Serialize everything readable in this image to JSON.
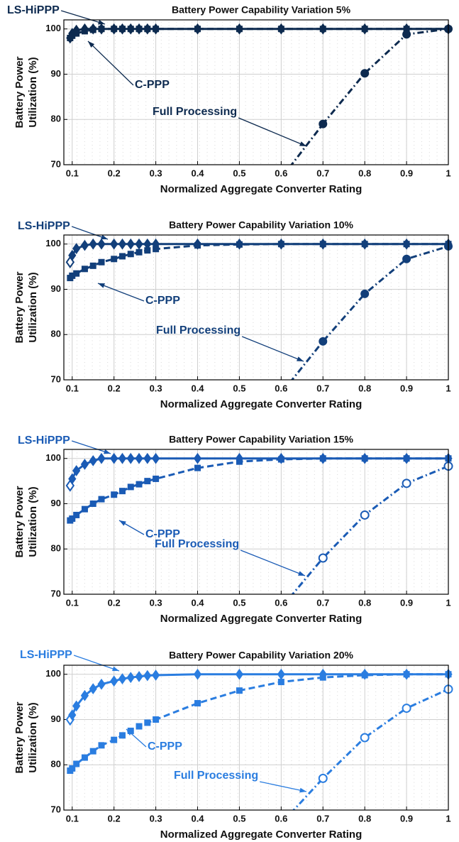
{
  "chart_data": [
    {
      "type": "line",
      "title": "Battery Power Capability Variation 5%",
      "xlabel": "Normalized Aggregate Converter Rating",
      "ylabel": [
        "Battery Power",
        "Utilization (%)"
      ],
      "color": "#0d2a4f",
      "xlim": [
        0.08,
        1
      ],
      "ylim": [
        70,
        102
      ],
      "xticks": [
        0.1,
        0.2,
        0.3,
        0.4,
        0.5,
        0.6,
        0.7,
        0.8,
        0.9,
        1
      ],
      "yticks": [
        70,
        80,
        90,
        100
      ],
      "grid": true,
      "series": [
        {
          "name": "LS-HiPPP",
          "dash": "solid",
          "marker": "diamond",
          "open_points": [],
          "x": [
            0.095,
            0.1,
            0.11,
            0.13,
            0.15,
            0.17,
            0.2,
            0.22,
            0.24,
            0.26,
            0.28,
            0.3,
            0.4,
            0.5,
            0.6,
            0.7,
            0.8,
            0.9,
            1
          ],
          "values": [
            98,
            99,
            99.7,
            100,
            100,
            100,
            100,
            100,
            100,
            100,
            100,
            100,
            100,
            100,
            100,
            100,
            100,
            100,
            100
          ]
        },
        {
          "name": "C-PPP",
          "dash": "dashed",
          "marker": "square",
          "open_points": [],
          "x": [
            0.095,
            0.1,
            0.11,
            0.13,
            0.15,
            0.17,
            0.2,
            0.22,
            0.24,
            0.26,
            0.28,
            0.3,
            0.4,
            0.5,
            0.6,
            0.7,
            0.8,
            0.9,
            1
          ],
          "values": [
            98,
            98.5,
            99,
            99.5,
            99.8,
            100,
            100,
            100,
            100,
            100,
            100,
            100,
            100,
            100,
            100,
            100,
            100,
            100,
            100
          ]
        },
        {
          "name": "Full Processing",
          "dash": "dashdot",
          "marker": "circle",
          "open_points": [],
          "x": [
            0.6,
            0.7,
            0.8,
            0.9,
            1
          ],
          "values": [
            67,
            79,
            90.2,
            98.8,
            100
          ]
        }
      ]
    },
    {
      "type": "line",
      "title": "Battery Power Capability Variation 10%",
      "xlabel": "Normalized Aggregate Converter Rating",
      "ylabel": [
        "Battery Power",
        "Utilization (%)"
      ],
      "color": "#123f7a",
      "xlim": [
        0.08,
        1
      ],
      "ylim": [
        70,
        102
      ],
      "xticks": [
        0.1,
        0.2,
        0.3,
        0.4,
        0.5,
        0.6,
        0.7,
        0.8,
        0.9,
        1
      ],
      "yticks": [
        70,
        80,
        90,
        100
      ],
      "grid": true,
      "series": [
        {
          "name": "LS-HiPPP",
          "dash": "solid",
          "marker": "diamond",
          "open_points": [
            0
          ],
          "x": [
            0.095,
            0.1,
            0.11,
            0.13,
            0.15,
            0.17,
            0.2,
            0.22,
            0.24,
            0.26,
            0.28,
            0.3,
            0.4,
            0.5,
            0.6,
            0.7,
            0.8,
            0.9,
            1
          ],
          "values": [
            96,
            97.5,
            99,
            99.7,
            100,
            100,
            100,
            100,
            100,
            100,
            100,
            100,
            100,
            100,
            100,
            100,
            100,
            100,
            100
          ]
        },
        {
          "name": "C-PPP",
          "dash": "dashed",
          "marker": "square",
          "open_points": [],
          "x": [
            0.095,
            0.1,
            0.11,
            0.13,
            0.15,
            0.17,
            0.2,
            0.22,
            0.24,
            0.26,
            0.28,
            0.3,
            0.4,
            0.5,
            0.6,
            0.7,
            0.8,
            0.9,
            1
          ],
          "values": [
            92.5,
            93,
            93.5,
            94.5,
            95.2,
            96,
            96.7,
            97.3,
            97.8,
            98.2,
            98.6,
            98.9,
            99.7,
            99.9,
            100,
            100,
            100,
            100,
            100
          ]
        },
        {
          "name": "Full Processing",
          "dash": "dashdot",
          "marker": "circle",
          "open_points": [],
          "x": [
            0.6,
            0.7,
            0.8,
            0.9,
            1
          ],
          "values": [
            67,
            78.5,
            89,
            96.7,
            99.5
          ]
        }
      ]
    },
    {
      "type": "line",
      "title": "Battery Power Capability Variation 15%",
      "xlabel": "Normalized Aggregate Converter Rating",
      "ylabel": [
        "Battery Power",
        "Utilization (%)"
      ],
      "color": "#1a5bb5",
      "xlim": [
        0.08,
        1
      ],
      "ylim": [
        70,
        102
      ],
      "xticks": [
        0.1,
        0.2,
        0.3,
        0.4,
        0.5,
        0.6,
        0.7,
        0.8,
        0.9,
        1
      ],
      "yticks": [
        70,
        80,
        90,
        100
      ],
      "grid": true,
      "series": [
        {
          "name": "LS-HiPPP",
          "dash": "solid",
          "marker": "diamond",
          "open_points": [
            0
          ],
          "x": [
            0.095,
            0.1,
            0.11,
            0.13,
            0.15,
            0.17,
            0.2,
            0.22,
            0.24,
            0.26,
            0.28,
            0.3,
            0.4,
            0.5,
            0.6,
            0.7,
            0.8,
            0.9,
            1
          ],
          "values": [
            94,
            95.5,
            97.3,
            98.7,
            99.5,
            100,
            100,
            100,
            100,
            100,
            100,
            100,
            100,
            100,
            100,
            100,
            100,
            100,
            100
          ]
        },
        {
          "name": "C-PPP",
          "dash": "dashed",
          "marker": "square",
          "open_points": [],
          "x": [
            0.095,
            0.1,
            0.11,
            0.13,
            0.15,
            0.17,
            0.2,
            0.22,
            0.24,
            0.26,
            0.28,
            0.3,
            0.4,
            0.5,
            0.6,
            0.7,
            0.8,
            0.9,
            1
          ],
          "values": [
            86.3,
            86.7,
            87.5,
            88.8,
            90,
            91,
            92,
            92.8,
            93.7,
            94.3,
            95,
            95.5,
            97.9,
            99.3,
            99.8,
            100,
            100,
            100,
            100
          ]
        },
        {
          "name": "Full Processing",
          "dash": "dashdot",
          "marker": "circle",
          "open_points": [
            0,
            1,
            2,
            3,
            4
          ],
          "x": [
            0.6,
            0.7,
            0.8,
            0.9,
            1
          ],
          "values": [
            67,
            78,
            87.5,
            94.5,
            98.3
          ]
        }
      ]
    },
    {
      "type": "line",
      "title": "Battery Power Capability Variation 20%",
      "xlabel": "Normalized Aggregate Converter Rating",
      "ylabel": [
        "Battery Power",
        "Utilization (%)"
      ],
      "color": "#2a7de0",
      "xlim": [
        0.08,
        1
      ],
      "ylim": [
        70,
        102
      ],
      "xticks": [
        0.1,
        0.2,
        0.3,
        0.4,
        0.5,
        0.6,
        0.7,
        0.8,
        0.9,
        1
      ],
      "yticks": [
        70,
        80,
        90,
        100
      ],
      "grid": true,
      "series": [
        {
          "name": "LS-HiPPP",
          "dash": "solid",
          "marker": "diamond",
          "open_points": [
            0
          ],
          "x": [
            0.095,
            0.1,
            0.11,
            0.13,
            0.15,
            0.17,
            0.2,
            0.22,
            0.24,
            0.26,
            0.28,
            0.3,
            0.4,
            0.5,
            0.6,
            0.7,
            0.8,
            0.9,
            1
          ],
          "values": [
            90,
            91,
            93,
            95.3,
            96.8,
            97.8,
            98.5,
            99,
            99.3,
            99.5,
            99.7,
            99.8,
            100,
            100,
            100,
            100,
            100,
            100,
            100
          ]
        },
        {
          "name": "C-PPP",
          "dash": "dashed",
          "marker": "square",
          "open_points": [],
          "x": [
            0.095,
            0.1,
            0.11,
            0.13,
            0.15,
            0.17,
            0.2,
            0.22,
            0.24,
            0.26,
            0.28,
            0.3,
            0.4,
            0.5,
            0.6,
            0.7,
            0.8,
            0.9,
            1
          ],
          "values": [
            78.7,
            79.2,
            80.2,
            81.6,
            83,
            84.3,
            85.5,
            86.5,
            87.5,
            88.5,
            89.3,
            90,
            93.6,
            96.4,
            98.3,
            99.3,
            99.8,
            100,
            100
          ]
        },
        {
          "name": "Full Processing",
          "dash": "dashdot",
          "marker": "circle",
          "open_points": [
            0,
            1,
            2,
            3,
            4
          ],
          "x": [
            0.6,
            0.7,
            0.8,
            0.9,
            1
          ],
          "values": [
            67,
            77,
            86,
            92.5,
            96.7
          ]
        }
      ]
    }
  ]
}
